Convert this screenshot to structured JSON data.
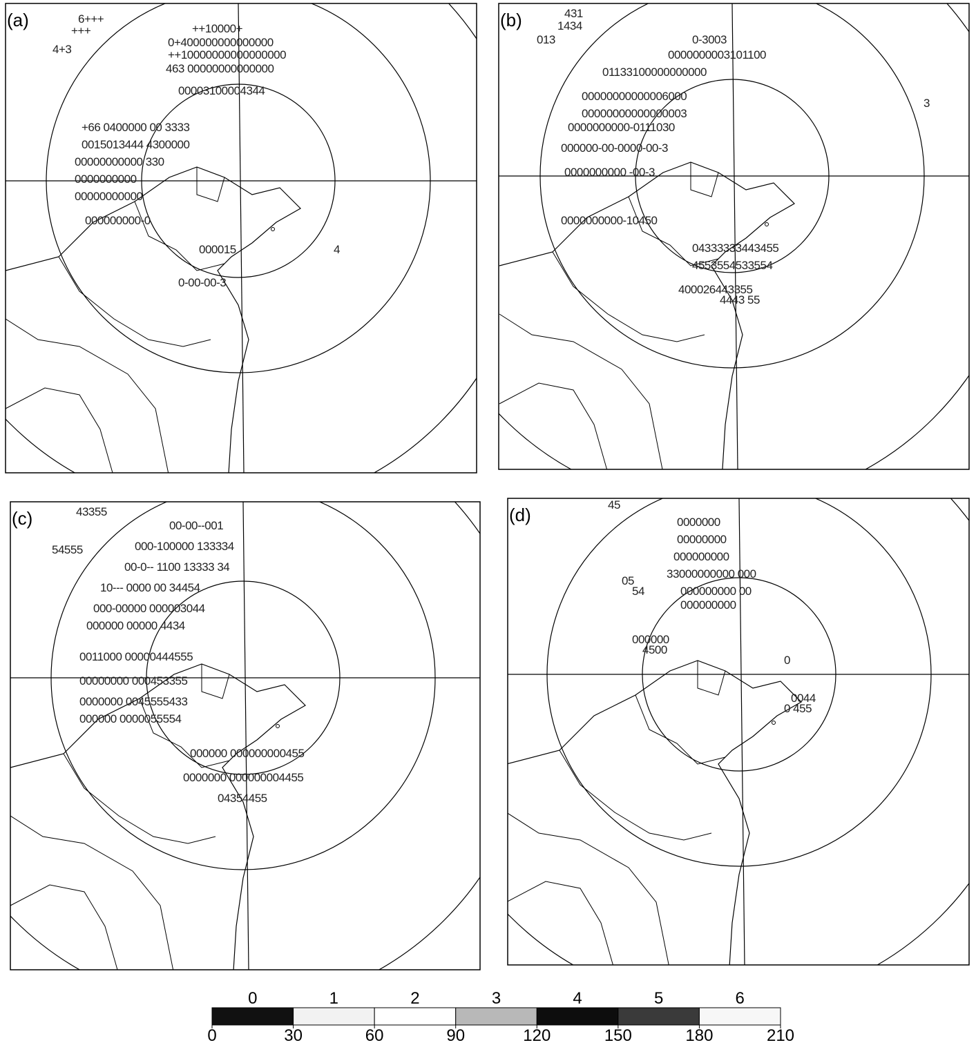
{
  "panels": [
    {
      "label": "(a)",
      "symbol_rows": [
        "6+++",
        "+++",
        "4+3",
        "++10000+",
        "0+400000000000000",
        "++10000000000000000",
        "463 00000000000000",
        "00003100004344",
        "+66 0400000 00 3333",
        "0015013444 4300000",
        "00000000000 330",
        "0000000000",
        "00000000000",
        "000000000-0",
        "000015",
        "0-00-00-3",
        "4"
      ]
    },
    {
      "label": "(b)",
      "symbol_rows": [
        "431",
        "1434",
        "013",
        "0-3003",
        "0000000003101100",
        "01133100000000000",
        "00000000000006000",
        "00000000000000003",
        "0000000000-0111030",
        "000000-00-0000-00-3",
        "0000000000 -00-3",
        "0000000000-10450",
        "04333333443455",
        "4553554533554",
        "400026443355",
        "4443 55",
        "3"
      ]
    },
    {
      "label": "(c)",
      "symbol_rows": [
        "43355",
        "54555",
        "00-00--001",
        "000-100000 133334",
        "00-0-- 1100 13333 34",
        "10--- 0000 00 34454",
        "000-00000 000003044",
        "000000 00000 4434",
        "0011000 00000444555",
        "00000000 000453355",
        "0000000 0045555433",
        "000000 0000055554",
        "000000 000000000455",
        "0000000 000000004455",
        "04354455"
      ]
    },
    {
      "label": "(d)",
      "symbol_rows": [
        "45",
        "0000000",
        "00000000",
        "000000000",
        "33000000000 000",
        "000000000 00",
        "000000000",
        "05",
        "54",
        "000000",
        "4500",
        "0",
        "0044",
        "0 455"
      ]
    }
  ],
  "colorbar": {
    "class_labels": [
      0,
      1,
      2,
      3,
      4,
      5,
      6
    ],
    "ticks": [
      0,
      30,
      60,
      90,
      120,
      150,
      180,
      210
    ],
    "lim": [
      0,
      210
    ],
    "colors": [
      "#111111",
      "#f2f2f2",
      "#ffffff",
      "#b8b8b8",
      "#0d0d0d",
      "#3a3a3a",
      "#f7f7f7"
    ]
  }
}
